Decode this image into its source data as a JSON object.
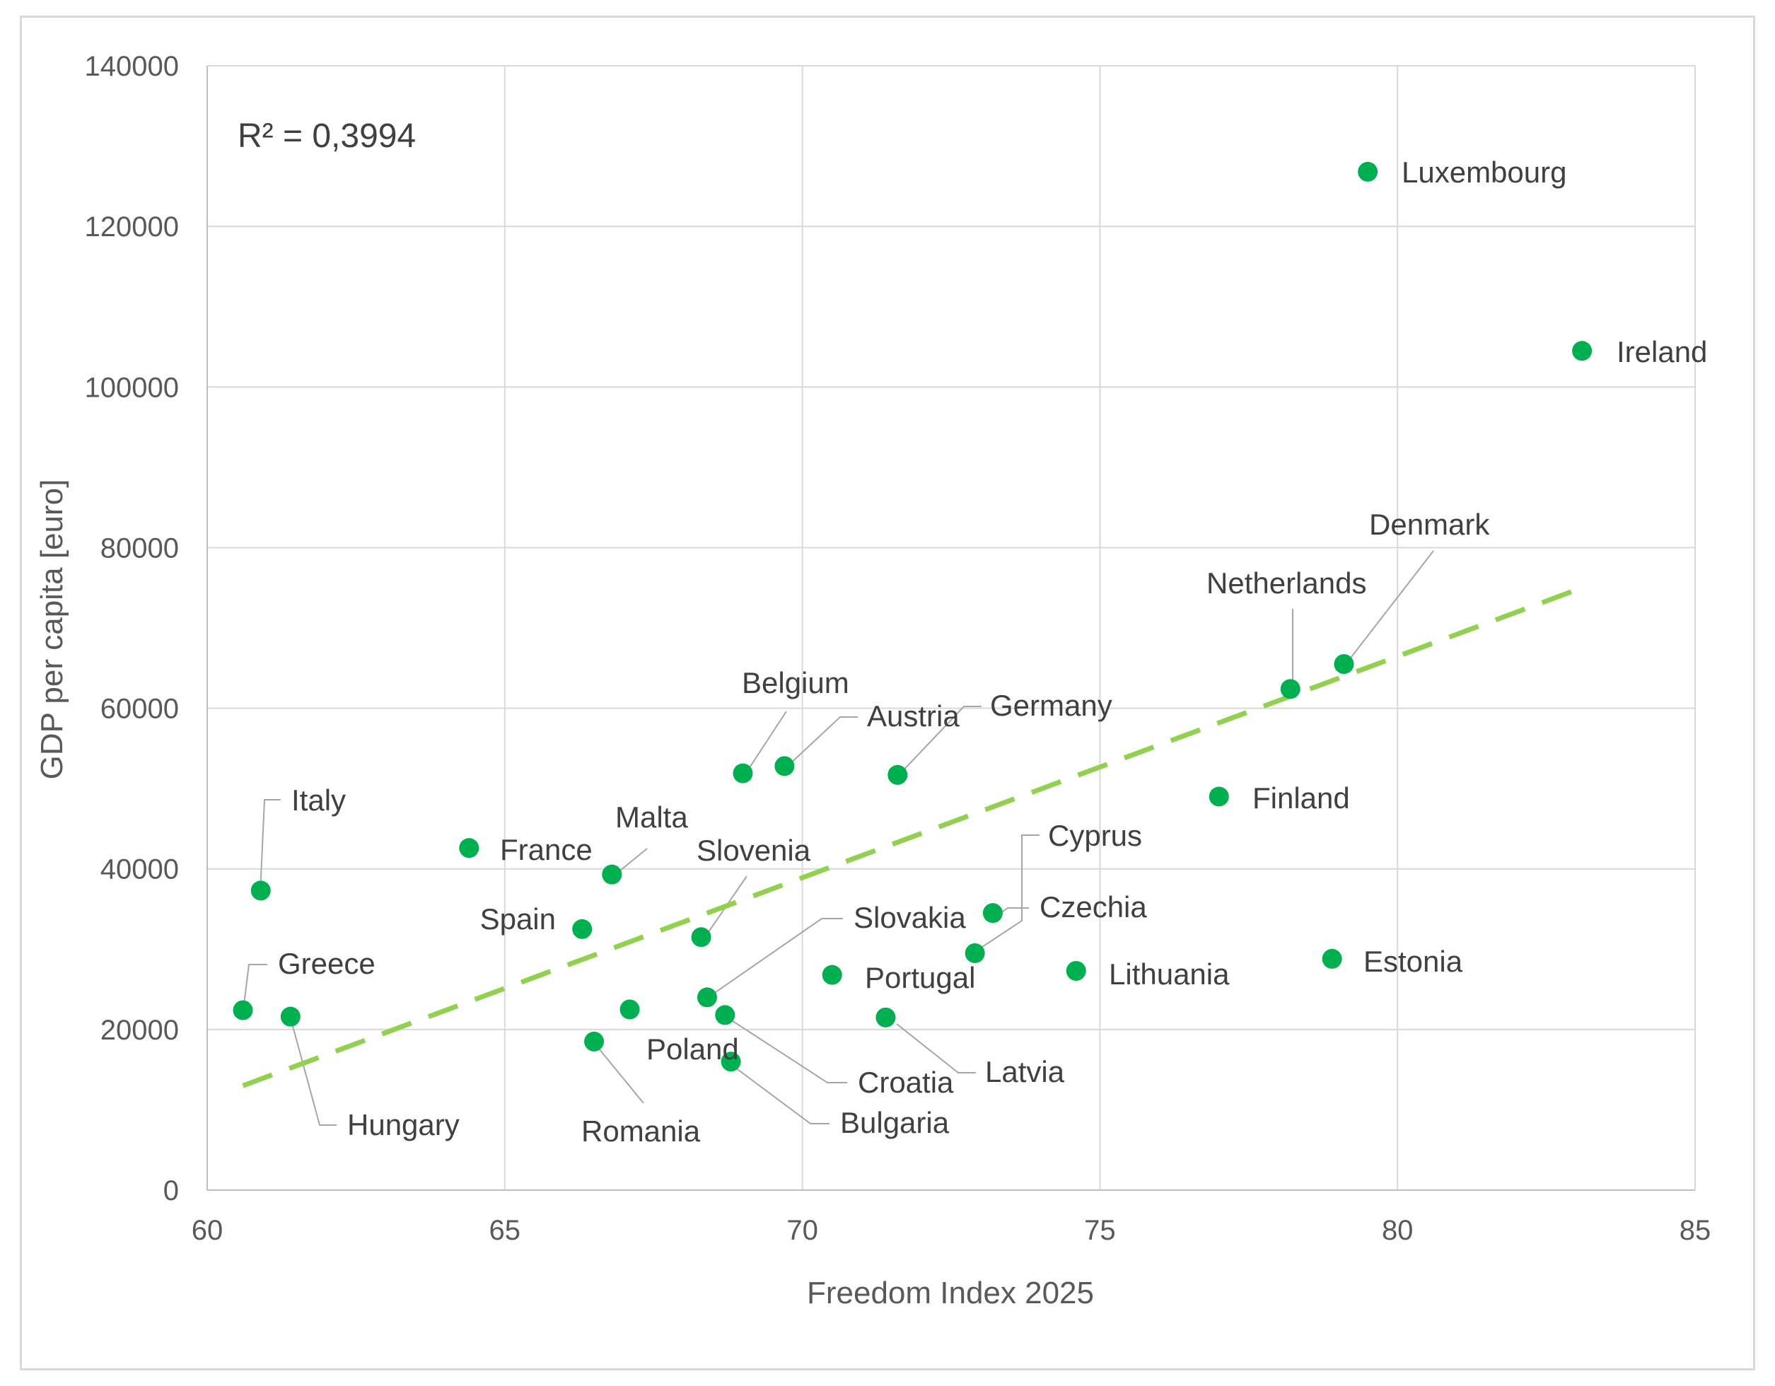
{
  "chart_data": {
    "type": "scatter",
    "title": "",
    "xlabel": "Freedom Index 2025",
    "ylabel": "GDP per capita [euro]",
    "xlim": [
      60,
      85
    ],
    "ylim": [
      0,
      140000
    ],
    "x_ticks": [
      60,
      65,
      70,
      75,
      80,
      85
    ],
    "y_ticks": [
      0,
      20000,
      40000,
      60000,
      80000,
      100000,
      120000,
      140000
    ],
    "grid": true,
    "legend": "none",
    "marker_color": "#00b050",
    "trendline_color": "#92d050",
    "annotation": "R² = 0,3994",
    "trendline": {
      "x": [
        60.6,
        83.1
      ],
      "y": [
        13000,
        75000
      ]
    },
    "points": [
      {
        "name": "Luxembourg",
        "x": 79.5,
        "y": 126800
      },
      {
        "name": "Ireland",
        "x": 83.1,
        "y": 104500
      },
      {
        "name": "Denmark",
        "x": 79.1,
        "y": 65500
      },
      {
        "name": "Netherlands",
        "x": 78.2,
        "y": 62400
      },
      {
        "name": "Finland",
        "x": 77.0,
        "y": 49000
      },
      {
        "name": "Estonia",
        "x": 78.9,
        "y": 28800
      },
      {
        "name": "Lithuania",
        "x": 74.6,
        "y": 27300
      },
      {
        "name": "Czechia",
        "x": 73.2,
        "y": 34500
      },
      {
        "name": "Cyprus",
        "x": 72.9,
        "y": 29500
      },
      {
        "name": "Latvia",
        "x": 71.4,
        "y": 21500
      },
      {
        "name": "Germany",
        "x": 71.6,
        "y": 51700
      },
      {
        "name": "Austria",
        "x": 69.7,
        "y": 52800
      },
      {
        "name": "Belgium",
        "x": 69.0,
        "y": 51900
      },
      {
        "name": "Portugal",
        "x": 70.5,
        "y": 26800
      },
      {
        "name": "Croatia",
        "x": 68.7,
        "y": 21800
      },
      {
        "name": "Bulgaria",
        "x": 68.8,
        "y": 16000
      },
      {
        "name": "Slovakia",
        "x": 68.4,
        "y": 24000
      },
      {
        "name": "Slovenia",
        "x": 68.3,
        "y": 31500
      },
      {
        "name": "Poland",
        "x": 67.1,
        "y": 22500
      },
      {
        "name": "Romania",
        "x": 66.5,
        "y": 18500
      },
      {
        "name": "Malta",
        "x": 66.8,
        "y": 39300
      },
      {
        "name": "Spain",
        "x": 66.3,
        "y": 32500
      },
      {
        "name": "France",
        "x": 64.4,
        "y": 42600
      },
      {
        "name": "Italy",
        "x": 60.9,
        "y": 37300
      },
      {
        "name": "Greece",
        "x": 60.6,
        "y": 22400
      },
      {
        "name": "Hungary",
        "x": 61.4,
        "y": 21600
      }
    ]
  }
}
